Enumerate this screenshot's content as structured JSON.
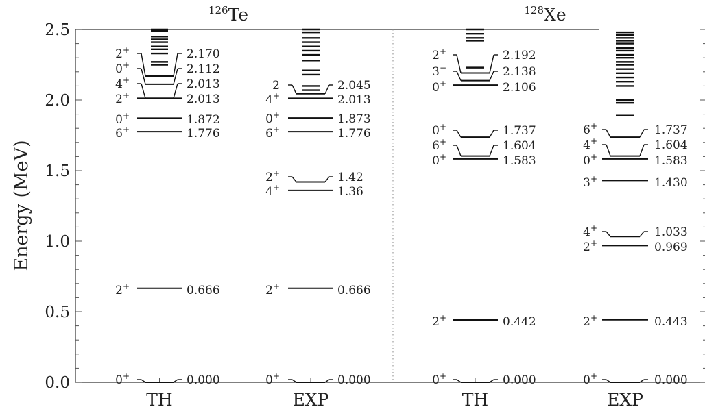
{
  "chart_data": {
    "type": "level-scheme",
    "ylabel": "Energy (MeV)",
    "ylim": [
      0.0,
      2.5
    ],
    "yticks": [
      "0.0",
      "0.5",
      "1.0",
      "1.5",
      "2.0",
      "2.5"
    ],
    "groups": [
      {
        "sup": "126",
        "name": "Te"
      },
      {
        "sup": "128",
        "name": "Xe"
      }
    ],
    "columns": [
      {
        "label": "TH",
        "levels": [
          {
            "spin": "2",
            "parity": "+",
            "value": 2.17,
            "text": "2.170"
          },
          {
            "spin": "0",
            "parity": "+",
            "value": 2.112,
            "text": "2.112"
          },
          {
            "spin": "4",
            "parity": "+",
            "value": 2.013,
            "text": "2.013"
          },
          {
            "spin": "2",
            "parity": "+",
            "value": 2.013,
            "text": "2.013"
          },
          {
            "spin": "0",
            "parity": "+",
            "value": 1.872,
            "text": "1.872"
          },
          {
            "spin": "6",
            "parity": "+",
            "value": 1.776,
            "text": "1.776"
          },
          {
            "spin": "2",
            "parity": "+",
            "value": 0.666,
            "text": "0.666"
          },
          {
            "spin": "0",
            "parity": "+",
            "value": 0.0,
            "text": "0.000"
          }
        ],
        "extra_levels": [
          2.5,
          2.49,
          2.45,
          2.43,
          2.41,
          2.38,
          2.36,
          2.33,
          2.27,
          2.25
        ]
      },
      {
        "label": "EXP",
        "levels": [
          {
            "spin": "2",
            "parity": "",
            "value": 2.045,
            "text": "2.045"
          },
          {
            "spin": "4",
            "parity": "+",
            "value": 2.013,
            "text": "2.013"
          },
          {
            "spin": "0",
            "parity": "+",
            "value": 1.873,
            "text": "1.873"
          },
          {
            "spin": "6",
            "parity": "+",
            "value": 1.776,
            "text": "1.776"
          },
          {
            "spin": "2",
            "parity": "+",
            "value": 1.42,
            "text": "1.42"
          },
          {
            "spin": "4",
            "parity": "+",
            "value": 1.36,
            "text": "1.36"
          },
          {
            "spin": "2",
            "parity": "+",
            "value": 0.666,
            "text": "0.666"
          },
          {
            "spin": "0",
            "parity": "+",
            "value": 0.0,
            "text": "0.000"
          }
        ],
        "extra_levels": [
          2.5,
          2.48,
          2.44,
          2.41,
          2.38,
          2.35,
          2.32,
          2.28,
          2.21,
          2.18,
          2.1,
          2.07
        ]
      },
      {
        "label": "TH",
        "levels": [
          {
            "spin": "2",
            "parity": "+",
            "value": 2.192,
            "text": "2.192"
          },
          {
            "spin": "3",
            "parity": "−",
            "value": 2.138,
            "text": "2.138"
          },
          {
            "spin": "0",
            "parity": "+",
            "value": 2.106,
            "text": "2.106"
          },
          {
            "spin": "0",
            "parity": "+",
            "value": 1.737,
            "text": "1.737"
          },
          {
            "spin": "6",
            "parity": "+",
            "value": 1.604,
            "text": "1.604"
          },
          {
            "spin": "0",
            "parity": "+",
            "value": 1.583,
            "text": "1.583"
          },
          {
            "spin": "2",
            "parity": "+",
            "value": 0.442,
            "text": "0.442"
          },
          {
            "spin": "0",
            "parity": "+",
            "value": 0.0,
            "text": "0.000"
          }
        ],
        "extra_levels": [
          2.5,
          2.47,
          2.44,
          2.42,
          2.23
        ]
      },
      {
        "label": "EXP",
        "levels": [
          {
            "spin": "6",
            "parity": "+",
            "value": 1.737,
            "text": "1.737"
          },
          {
            "spin": "4",
            "parity": "+",
            "value": 1.604,
            "text": "1.604"
          },
          {
            "spin": "0",
            "parity": "+",
            "value": 1.583,
            "text": "1.583"
          },
          {
            "spin": "3",
            "parity": "+",
            "value": 1.43,
            "text": "1.430"
          },
          {
            "spin": "4",
            "parity": "+",
            "value": 1.033,
            "text": "1.033"
          },
          {
            "spin": "2",
            "parity": "+",
            "value": 0.969,
            "text": "0.969"
          },
          {
            "spin": "2",
            "parity": "+",
            "value": 0.443,
            "text": "0.443"
          },
          {
            "spin": "0",
            "parity": "+",
            "value": 0.0,
            "text": "0.000"
          }
        ],
        "extra_levels": [
          2.48,
          2.46,
          2.44,
          2.42,
          2.4,
          2.37,
          2.35,
          2.32,
          2.3,
          2.27,
          2.25,
          2.22,
          2.19,
          2.16,
          2.13,
          2.1,
          2.0,
          1.98,
          1.89
        ]
      }
    ]
  }
}
